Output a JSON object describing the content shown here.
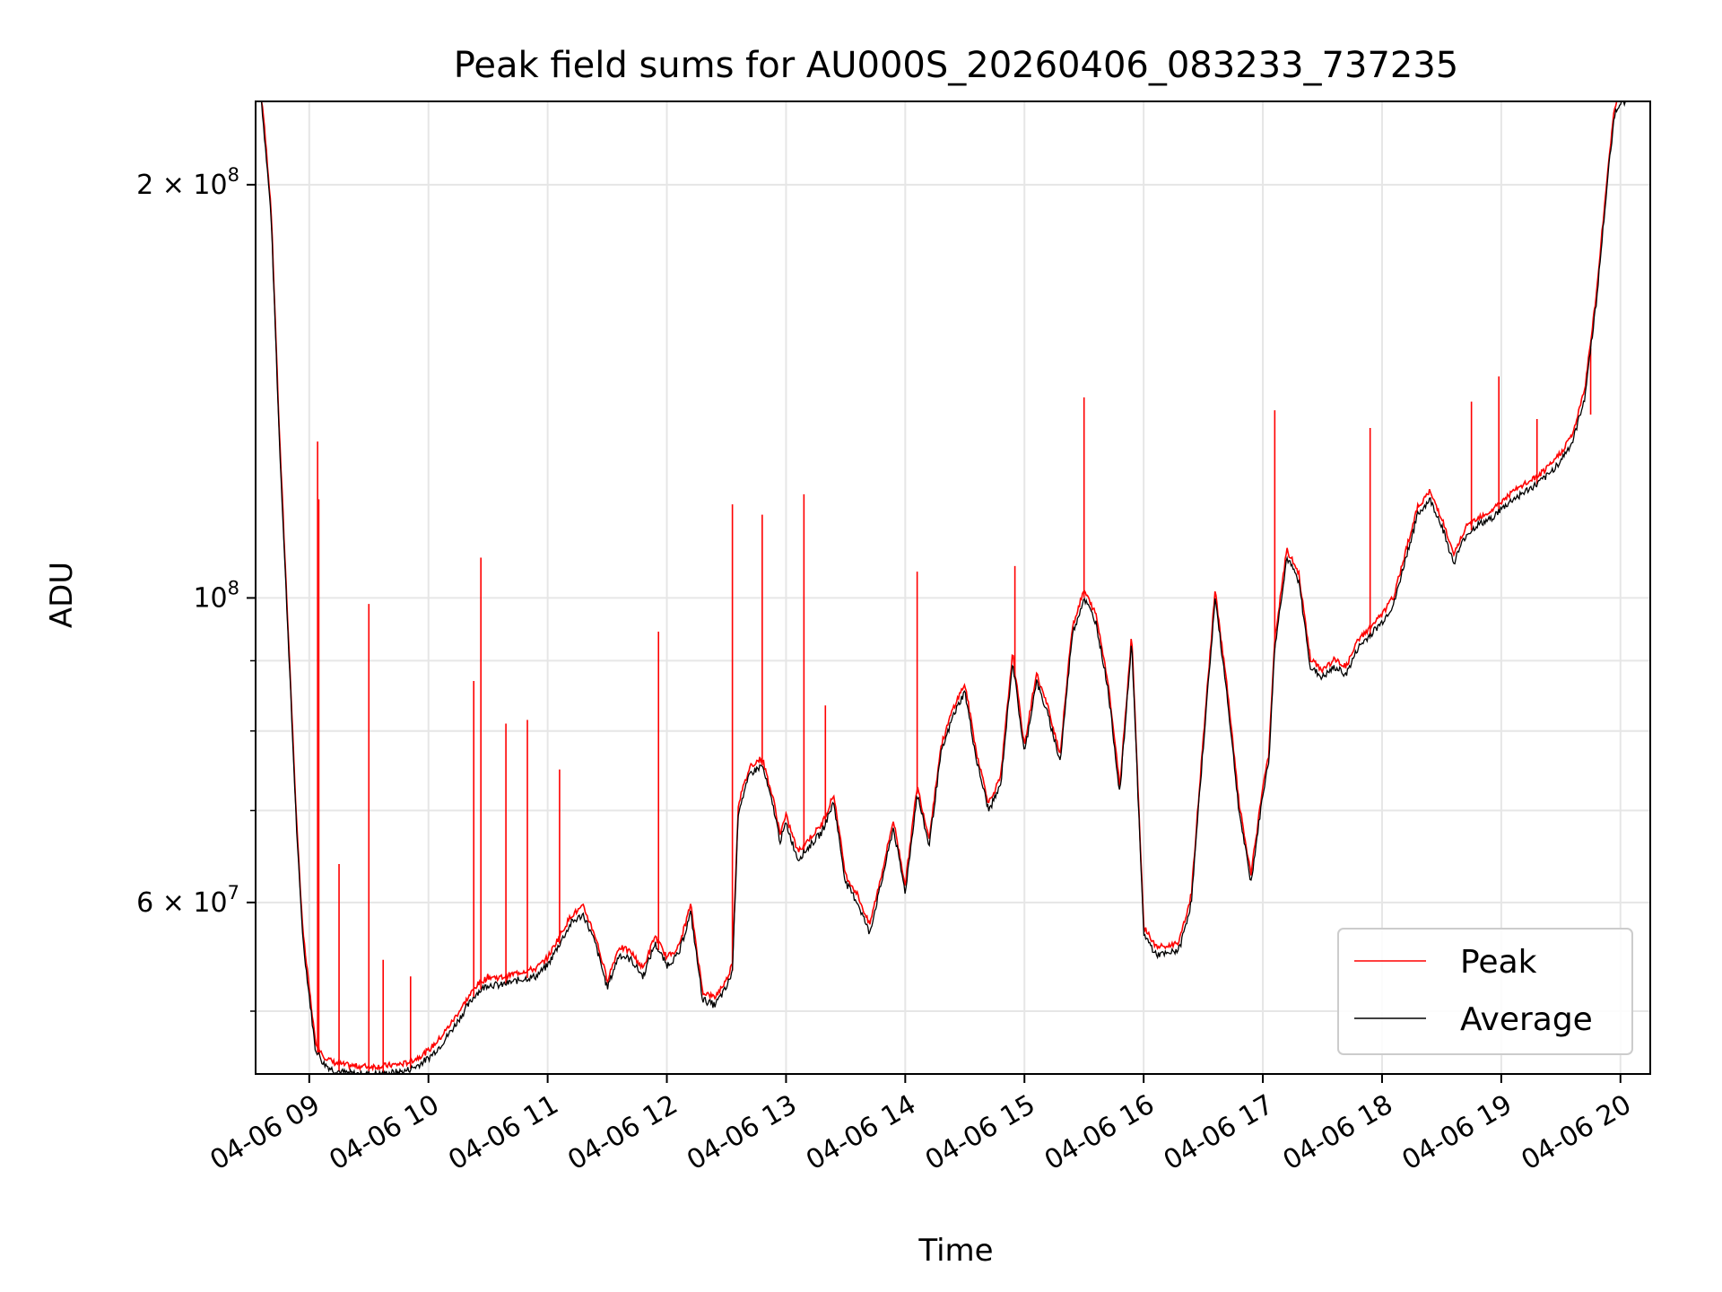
{
  "chart_data": {
    "type": "line",
    "title": "Peak field sums for AU000S_20260406_083233_737235",
    "xlabel": "Time",
    "ylabel": "ADU",
    "x_unit": "hour of day (2026-04-06)",
    "xlim": [
      8.55,
      20.25
    ],
    "ylim": [
      45000000,
      230000000
    ],
    "yscale": "log",
    "grid": true,
    "legend_position": "lower-right",
    "x_ticks": [
      {
        "value": 9,
        "label": "04-06 09"
      },
      {
        "value": 10,
        "label": "04-06 10"
      },
      {
        "value": 11,
        "label": "04-06 11"
      },
      {
        "value": 12,
        "label": "04-06 12"
      },
      {
        "value": 13,
        "label": "04-06 13"
      },
      {
        "value": 14,
        "label": "04-06 14"
      },
      {
        "value": 15,
        "label": "04-06 15"
      },
      {
        "value": 16,
        "label": "04-06 16"
      },
      {
        "value": 17,
        "label": "04-06 17"
      },
      {
        "value": 18,
        "label": "04-06 18"
      },
      {
        "value": 19,
        "label": "04-06 19"
      },
      {
        "value": 20,
        "label": "04-06 20"
      }
    ],
    "y_major_ticks": [
      {
        "value": 100000000,
        "label": "10",
        "exp": "8",
        "mant": ""
      },
      {
        "value": 200000000,
        "label": "2",
        "exp": "8",
        "mant": "2 × 10"
      },
      {
        "value": 60000000,
        "label": "6",
        "exp": "7",
        "mant": "6 × 10"
      }
    ],
    "y_minor_grid": [
      50000000,
      70000000,
      80000000,
      90000000
    ],
    "series": [
      {
        "name": "Average",
        "color": "#000000",
        "x": [
          8.6,
          8.68,
          8.75,
          8.82,
          8.9,
          8.95,
          9.05,
          9.12,
          9.2,
          9.3,
          9.4,
          9.5,
          9.6,
          9.7,
          9.8,
          9.9,
          10.0,
          10.1,
          10.2,
          10.3,
          10.4,
          10.5,
          10.6,
          10.7,
          10.8,
          10.9,
          11.0,
          11.1,
          11.2,
          11.3,
          11.4,
          11.5,
          11.6,
          11.7,
          11.8,
          11.9,
          12.0,
          12.1,
          12.2,
          12.3,
          12.4,
          12.5,
          12.55,
          12.6,
          12.7,
          12.8,
          12.9,
          12.95,
          13.0,
          13.1,
          13.2,
          13.3,
          13.4,
          13.5,
          13.6,
          13.7,
          13.8,
          13.9,
          14.0,
          14.1,
          14.2,
          14.3,
          14.4,
          14.5,
          14.6,
          14.7,
          14.8,
          14.9,
          15.0,
          15.1,
          15.2,
          15.3,
          15.4,
          15.5,
          15.6,
          15.7,
          15.8,
          15.9,
          16.0,
          16.1,
          16.2,
          16.3,
          16.4,
          16.5,
          16.6,
          16.7,
          16.8,
          16.9,
          17.0,
          17.05,
          17.1,
          17.2,
          17.3,
          17.4,
          17.5,
          17.6,
          17.7,
          17.8,
          17.85,
          17.9,
          18.0,
          18.1,
          18.2,
          18.3,
          18.4,
          18.5,
          18.6,
          18.7,
          18.8,
          18.9,
          19.0,
          19.1,
          19.2,
          19.3,
          19.4,
          19.5,
          19.6,
          19.7,
          19.8,
          19.9,
          19.95,
          20.0,
          20.05
        ],
        "y": [
          230000000,
          190000000,
          130000000,
          95000000,
          66000000,
          56000000,
          47000000,
          45800000,
          45300000,
          45100000,
          45000000,
          45000000,
          45000000,
          45100000,
          45200000,
          45600000,
          46200000,
          47200000,
          48500000,
          50000000,
          51500000,
          52300000,
          52200000,
          52500000,
          52800000,
          53000000,
          54000000,
          56000000,
          58000000,
          58800000,
          56000000,
          52000000,
          55000000,
          54500000,
          53000000,
          56000000,
          54000000,
          55000000,
          59000000,
          51000000,
          50500000,
          52000000,
          53500000,
          70000000,
          74500000,
          75500000,
          70000000,
          66500000,
          68500000,
          64500000,
          66000000,
          67500000,
          71000000,
          62000000,
          60000000,
          57000000,
          62000000,
          68000000,
          61000000,
          72000000,
          66000000,
          77000000,
          82000000,
          85500000,
          76000000,
          70000000,
          73000000,
          90000000,
          77000000,
          87000000,
          82000000,
          76000000,
          94000000,
          100000000,
          96000000,
          86000000,
          72000000,
          93000000,
          57000000,
          55000000,
          55000000,
          55500000,
          60000000,
          78000000,
          100000000,
          85000000,
          70000000,
          62000000,
          72000000,
          76000000,
          92000000,
          107000000,
          103000000,
          89000000,
          87500000,
          89000000,
          88000000,
          92000000,
          93000000,
          94000000,
          96000000,
          99000000,
          107000000,
          115000000,
          118000000,
          113000000,
          106000000,
          111000000,
          113000000,
          114000000,
          116000000,
          118000000,
          119500000,
          121000000,
          123000000,
          126000000,
          130000000,
          140000000,
          165000000,
          205000000,
          225000000,
          230000000,
          230000000
        ]
      },
      {
        "name": "Peak",
        "color": "#ff0000",
        "spikes": [
          {
            "x": 9.07,
            "y": 130000000
          },
          {
            "x": 9.08,
            "y": 118000000
          },
          {
            "x": 9.25,
            "y": 64000000
          },
          {
            "x": 9.5,
            "y": 99000000
          },
          {
            "x": 9.62,
            "y": 54500000
          },
          {
            "x": 9.85,
            "y": 53000000
          },
          {
            "x": 10.38,
            "y": 87000000
          },
          {
            "x": 10.44,
            "y": 107000000
          },
          {
            "x": 10.65,
            "y": 81000000
          },
          {
            "x": 10.83,
            "y": 81500000
          },
          {
            "x": 11.1,
            "y": 75000000
          },
          {
            "x": 11.93,
            "y": 94500000
          },
          {
            "x": 12.55,
            "y": 117000000
          },
          {
            "x": 12.8,
            "y": 115000000
          },
          {
            "x": 13.15,
            "y": 119000000
          },
          {
            "x": 13.33,
            "y": 83500000
          },
          {
            "x": 14.1,
            "y": 104500000
          },
          {
            "x": 14.92,
            "y": 105500000
          },
          {
            "x": 15.5,
            "y": 140000000
          },
          {
            "x": 17.1,
            "y": 137000000
          },
          {
            "x": 17.9,
            "y": 133000000
          },
          {
            "x": 18.75,
            "y": 139000000
          },
          {
            "x": 18.98,
            "y": 145000000
          },
          {
            "x": 19.3,
            "y": 135000000
          },
          {
            "x": 19.75,
            "y": 136000000
          }
        ]
      }
    ]
  }
}
